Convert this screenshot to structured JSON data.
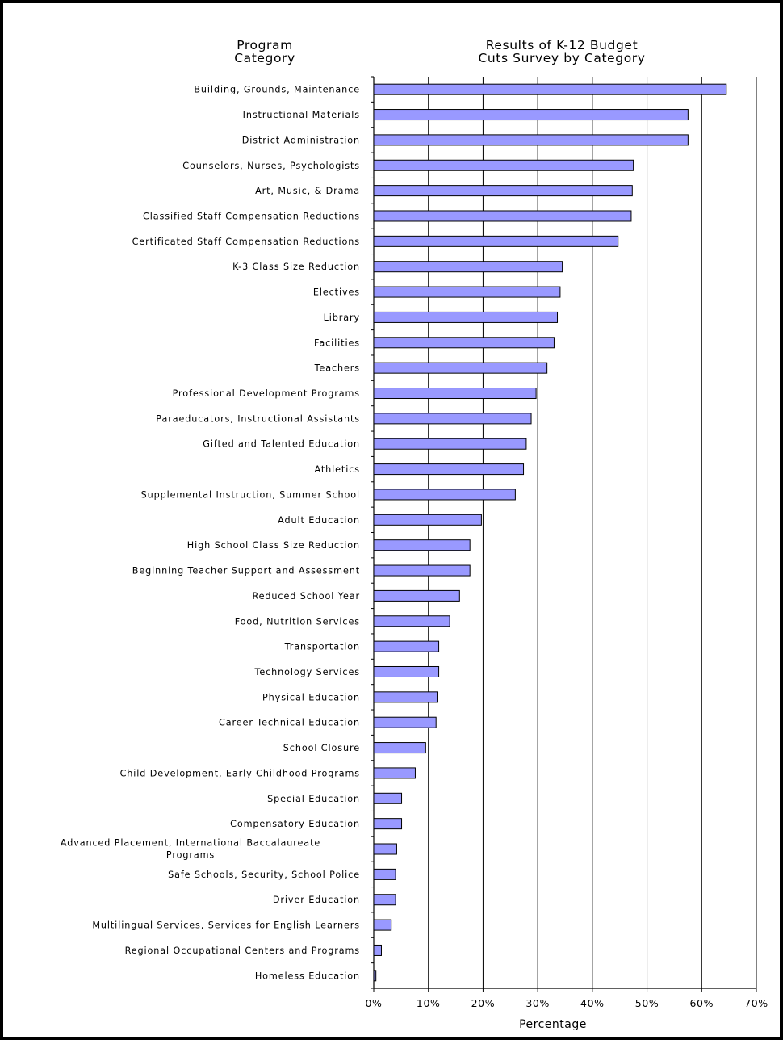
{
  "header": {
    "category_title_line1": "Program",
    "category_title_line2": "Category"
  },
  "chart_data": {
    "type": "bar",
    "orientation": "horizontal",
    "title_line1": "Results of K-12 Budget",
    "title_line2": "Cuts Survey by Category",
    "xlabel": "Percentage",
    "ylabel": "",
    "xlim": [
      0,
      70
    ],
    "xticks": [
      "0%",
      "10%",
      "20%",
      "30%",
      "40%",
      "50%",
      "60%",
      "70%"
    ],
    "grid": "vertical",
    "bar_color": "#9999ff",
    "categories": [
      "Building, Grounds, Maintenance",
      "Instructional Materials",
      "District Administration",
      "Counselors, Nurses, Psychologists",
      "Art, Music, & Drama",
      "Classified Staff Compensation Reductions",
      "Certificated Staff Compensation Reductions",
      "K-3 Class Size Reduction",
      "Electives",
      "Library",
      "Facilities",
      "Teachers",
      "Professional Development Programs",
      "Paraeducators, Instructional Assistants",
      "Gifted and Talented Education",
      "Athletics",
      "Supplemental Instruction, Summer School",
      "Adult Education",
      "High School Class Size Reduction",
      "Beginning Teacher Support and Assessment",
      "Reduced School Year",
      "Food, Nutrition Services",
      "Transportation",
      "Technology Services",
      "Physical Education",
      "Career Technical Education",
      "School Closure",
      "Child Development, Early Childhood Programs",
      "Special Education",
      "Compensatory Education",
      "Advanced Placement, International Baccalaureate Programs",
      "Safe Schools, Security, School Police",
      "Driver Education",
      "Multilingual Services, Services for English Learners",
      "Regional Occupational Centers and Programs",
      "Homeless Education"
    ],
    "values": [
      64.5,
      57.5,
      57.5,
      47.5,
      47.3,
      47.1,
      44.7,
      34.5,
      34.1,
      33.6,
      33.0,
      31.7,
      29.7,
      28.8,
      27.9,
      27.4,
      25.9,
      19.7,
      17.6,
      17.6,
      15.7,
      13.9,
      11.9,
      11.9,
      11.6,
      11.4,
      9.5,
      7.6,
      5.1,
      5.1,
      4.2,
      4.0,
      4.0,
      3.2,
      1.4,
      0.4
    ]
  }
}
